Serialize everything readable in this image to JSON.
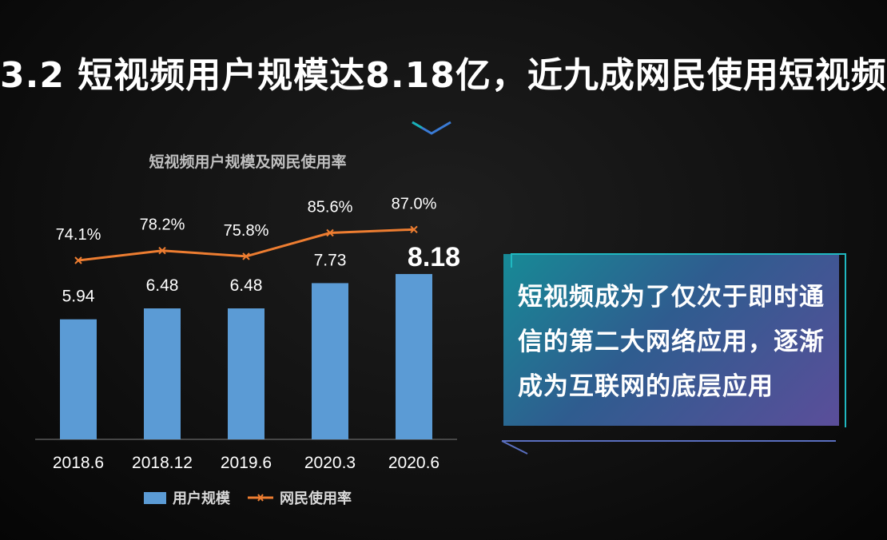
{
  "title": "3.2 短视频用户规模达8.18亿，近九成网民使用短视频",
  "chart_data": {
    "type": "bar",
    "title": "短视频用户规模及网民使用率",
    "categories": [
      "2018.6",
      "2018.12",
      "2019.6",
      "2020.3",
      "2020.6"
    ],
    "series": [
      {
        "name": "用户规模",
        "type": "bar",
        "values": [
          5.94,
          6.48,
          6.48,
          7.73,
          8.18
        ],
        "value_labels": [
          "5.94",
          "6.48",
          "6.48",
          "7.73",
          "8.18"
        ],
        "color": "#5b9bd5"
      },
      {
        "name": "网民使用率",
        "type": "line",
        "values": [
          74.1,
          78.2,
          75.8,
          85.6,
          87.0
        ],
        "value_labels": [
          "74.1%",
          "78.2%",
          "75.8%",
          "85.6%",
          "87.0%"
        ],
        "color": "#ed7d31"
      }
    ],
    "highlight_value": "8.18",
    "legend_position": "bottom",
    "grid": false
  },
  "callout": {
    "text": "短视频成为了仅次于即时通信的第二大网络应用，逐渐成为互联网的底层应用"
  },
  "icons": {
    "divider": "chevron-down-icon"
  }
}
